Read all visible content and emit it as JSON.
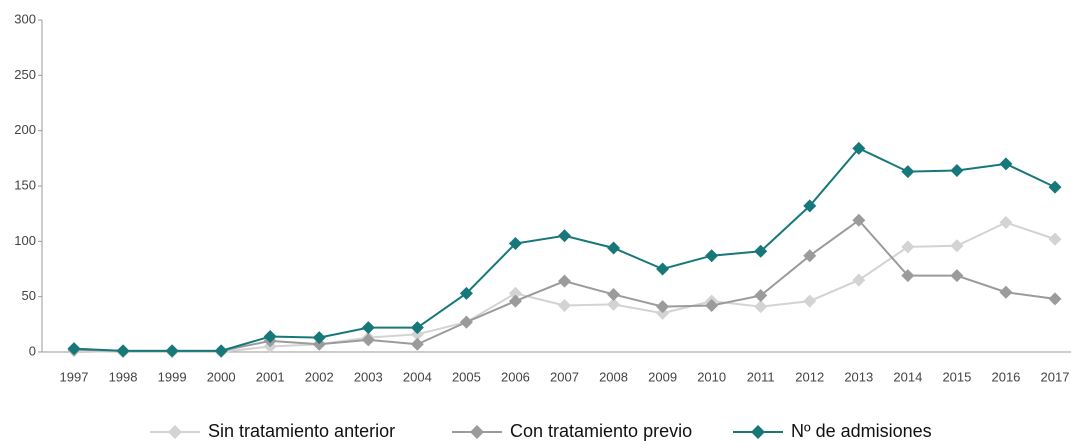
{
  "chart_data": {
    "type": "line",
    "categories": [
      "1997",
      "1998",
      "1999",
      "2000",
      "2001",
      "2002",
      "2003",
      "2004",
      "2005",
      "2006",
      "2007",
      "2008",
      "2009",
      "2010",
      "2011",
      "2012",
      "2013",
      "2014",
      "2015",
      "2016",
      "2017"
    ],
    "series": [
      {
        "name": "Sin tratamiento anterior",
        "color": "#d3d3d3",
        "values": [
          1,
          0,
          0,
          0,
          5,
          7,
          13,
          16,
          27,
          53,
          42,
          43,
          35,
          46,
          41,
          46,
          65,
          95,
          96,
          117,
          102
        ]
      },
      {
        "name": "Con tratamiento previo",
        "color": "#9b9b9b",
        "values": [
          2,
          1,
          1,
          1,
          10,
          7,
          11,
          7,
          27,
          46,
          64,
          52,
          41,
          42,
          51,
          87,
          119,
          69,
          69,
          54,
          48
        ]
      },
      {
        "name": "Nº de admisiones",
        "color": "#17787a",
        "values": [
          3,
          1,
          1,
          1,
          14,
          13,
          22,
          22,
          53,
          98,
          105,
          94,
          75,
          87,
          91,
          132,
          184,
          163,
          164,
          170,
          149
        ]
      }
    ],
    "ylim": [
      0,
      300
    ],
    "yticks": [
      0,
      50,
      100,
      150,
      200,
      250,
      300
    ],
    "legend": "bottom"
  }
}
